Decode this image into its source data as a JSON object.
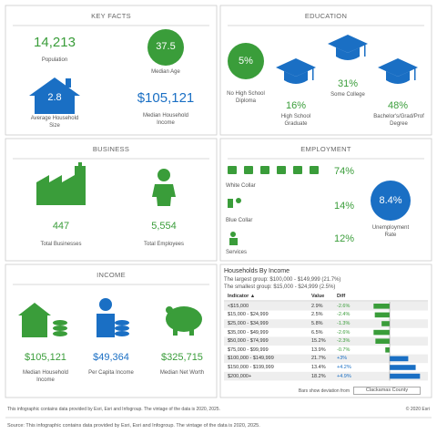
{
  "key_facts": {
    "title": "KEY FACTS",
    "population": {
      "value": "14,213",
      "label": "Population"
    },
    "median_age": {
      "value": "37.5",
      "label": "Median Age"
    },
    "household_size": {
      "value": "2.8",
      "label": "Average Household Size"
    },
    "median_income": {
      "value": "$105,121",
      "label": "Median Household Income"
    }
  },
  "education": {
    "title": "EDUCATION",
    "items": [
      {
        "value": "5%",
        "label": "No High School Diploma"
      },
      {
        "value": "16%",
        "label": "High School Graduate"
      },
      {
        "value": "31%",
        "label": "Some College"
      },
      {
        "value": "48%",
        "label": "Bachelor's/Grad/Prof Degree"
      }
    ]
  },
  "business": {
    "title": "BUSINESS",
    "businesses": {
      "value": "447",
      "label": "Total Businesses"
    },
    "employees": {
      "value": "5,554",
      "label": "Total Employees"
    }
  },
  "employment": {
    "title": "EMPLOYMENT",
    "white_collar": {
      "value": "74%",
      "label": "White Collar"
    },
    "blue_collar": {
      "value": "14%",
      "label": "Blue Collar"
    },
    "services": {
      "value": "12%",
      "label": "Services"
    },
    "unemployment": {
      "value": "8.4%",
      "label": "Unemployment Rate"
    }
  },
  "income": {
    "title": "INCOME",
    "median_household": {
      "value": "$105,121",
      "label": "Median Household Income"
    },
    "per_capita": {
      "value": "$49,364",
      "label": "Per Capita Income"
    },
    "net_worth": {
      "value": "$325,715",
      "label": "Median Net Worth"
    }
  },
  "households": {
    "title": "Households By Income",
    "notes": [
      "The largest group: $100,000 - $149,999 (21.7%)",
      "The smallest group: $15,000 - $24,999 (2.5%)"
    ],
    "columns": [
      "Indicator ▲",
      "Value",
      "Diff"
    ],
    "rows": [
      {
        "indicator": "<$15,000",
        "value": "2.9%",
        "diff": -2.6,
        "diff_label": "-2.6%"
      },
      {
        "indicator": "$15,000 - $24,999",
        "value": "2.5%",
        "diff": -2.4,
        "diff_label": "-2.4%"
      },
      {
        "indicator": "$25,000 - $34,999",
        "value": "5.8%",
        "diff": -1.3,
        "diff_label": "-1.3%"
      },
      {
        "indicator": "$35,000 - $49,999",
        "value": "6.5%",
        "diff": -2.6,
        "diff_label": "-2.6%"
      },
      {
        "indicator": "$50,000 - $74,999",
        "value": "15.2%",
        "diff": -2.3,
        "diff_label": "-2.3%"
      },
      {
        "indicator": "$75,000 - $99,999",
        "value": "13.9%",
        "diff": -0.7,
        "diff_label": "-0.7%"
      },
      {
        "indicator": "$100,000 - $149,999",
        "value": "21.7%",
        "diff": 3,
        "diff_label": "+3%"
      },
      {
        "indicator": "$150,000 - $199,999",
        "value": "13.4%",
        "diff": 4.2,
        "diff_label": "+4.2%"
      },
      {
        "indicator": "$200,000+",
        "value": "18.2%",
        "diff": 4.9,
        "diff_label": "+4.9%"
      }
    ],
    "legend_text": "Bars show deviation from",
    "legend_area": "Clackamas County"
  },
  "footer": {
    "note": "This infographic contains data provided by Esri, Esri and Infogroup. The vintage of the data is 2020, 2025.",
    "copyright": "© 2020 Esri",
    "source": "Source: This infographic contains data provided by Esri, Esri and Infogroup. The vintage of the data is 2020, 2025."
  }
}
